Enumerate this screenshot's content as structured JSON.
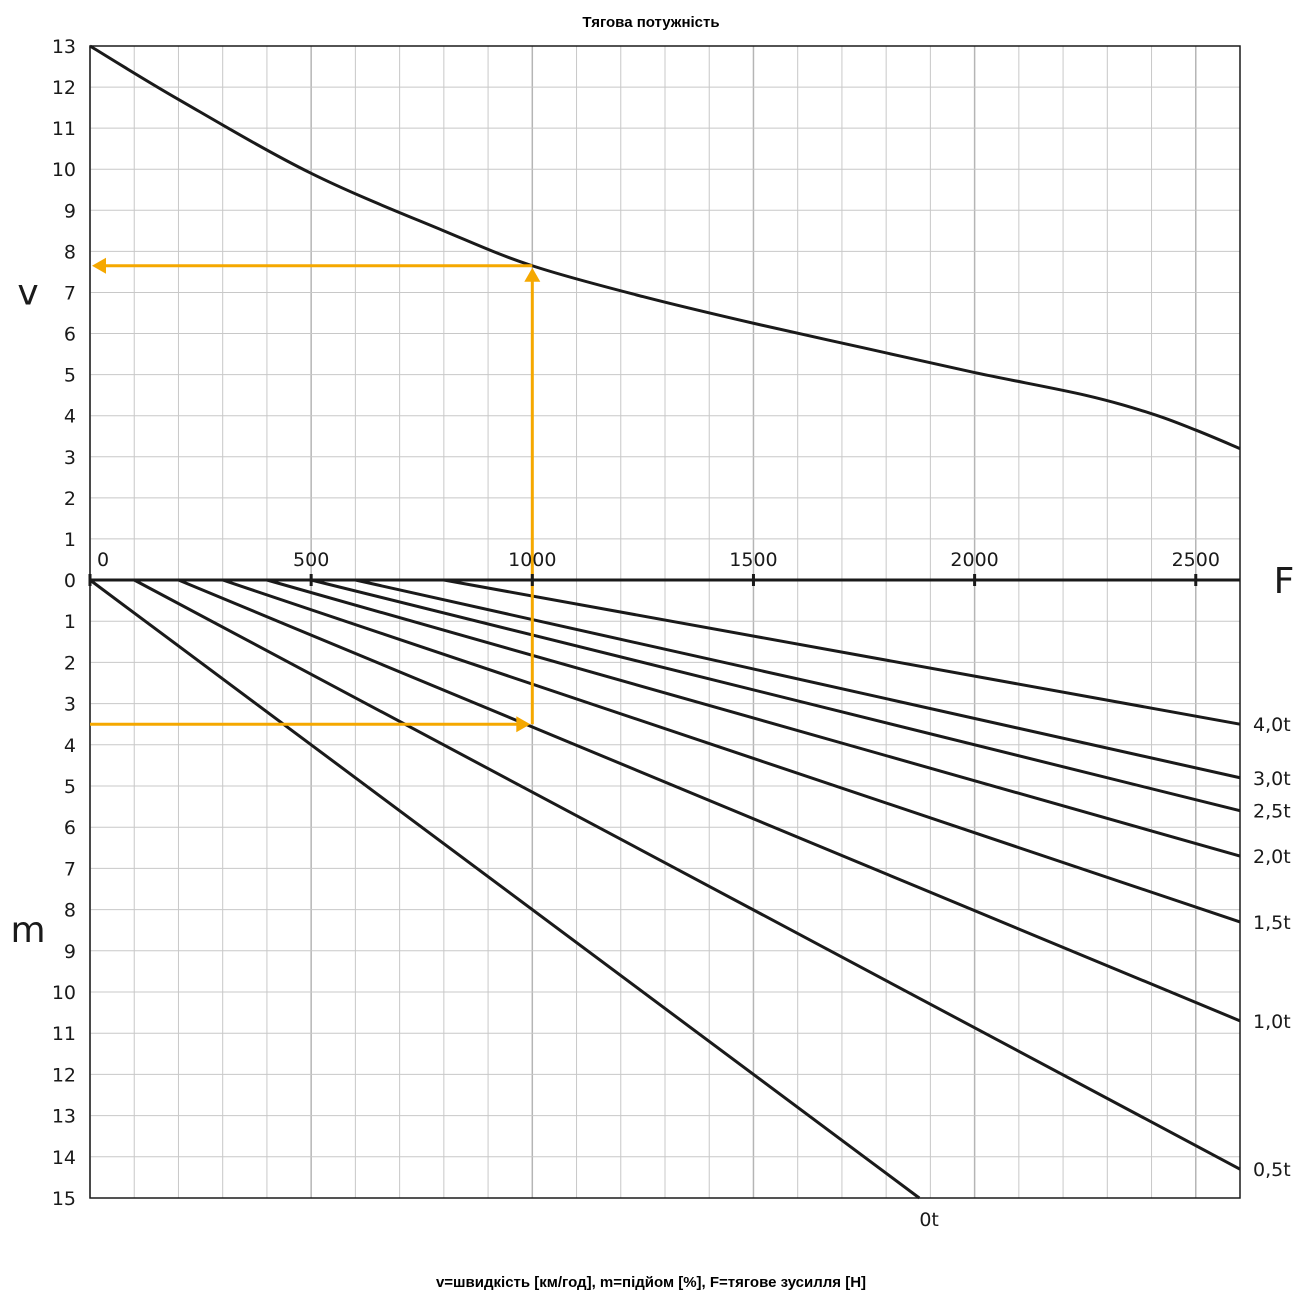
{
  "chart_data": {
    "type": "line",
    "title": "Тягова потужність",
    "caption": "v=швидкість [км/год], m=підйом [%], F=тягове зусилля [Н]",
    "x_axis": {
      "label": "F",
      "ticks": [
        "0",
        "500",
        "1000",
        "1500",
        "2000",
        "2500"
      ],
      "range": [
        0,
        2600
      ],
      "grid": true
    },
    "upper_axis": {
      "label": "v",
      "ticks": [
        "0",
        "1",
        "2",
        "3",
        "4",
        "5",
        "6",
        "7",
        "8",
        "9",
        "10",
        "11",
        "12",
        "13"
      ],
      "range": [
        0,
        13
      ]
    },
    "lower_axis": {
      "label": "m",
      "ticks": [
        "0",
        "1",
        "2",
        "3",
        "4",
        "5",
        "6",
        "7",
        "8",
        "9",
        "10",
        "11",
        "12",
        "13",
        "14",
        "15"
      ],
      "range": [
        0,
        15
      ]
    },
    "speed_curve": {
      "x": [
        0,
        200,
        500,
        800,
        1000,
        1250,
        1500,
        1750,
        2000,
        2250,
        2400,
        2500,
        2600
      ],
      "y": [
        13.0,
        11.7,
        9.9,
        8.5,
        7.65,
        6.9,
        6.25,
        5.65,
        5.05,
        4.5,
        4.05,
        3.65,
        3.2
      ]
    },
    "load_lines": [
      {
        "label": "0t",
        "x": [
          0,
          0
        ],
        "m": [
          0,
          0
        ],
        "end_x": 1875,
        "end_m": 15.0
      },
      {
        "label": "0,5t",
        "x": [
          100,
          0
        ],
        "end_x": 2600,
        "end_m": 14.3
      },
      {
        "label": "1,0t",
        "x": [
          200,
          0
        ],
        "end_x": 2600,
        "end_m": 10.7
      },
      {
        "label": "1,5t",
        "x": [
          300,
          0
        ],
        "end_x": 2600,
        "end_m": 8.3
      },
      {
        "label": "2,0t",
        "x": [
          400,
          0
        ],
        "end_x": 2600,
        "end_m": 6.7
      },
      {
        "label": "2,5t",
        "x": [
          500,
          0
        ],
        "end_x": 2600,
        "end_m": 5.6
      },
      {
        "label": "3,0t",
        "x": [
          600,
          0
        ],
        "end_x": 2600,
        "end_m": 4.8
      },
      {
        "label": "4,0t",
        "x": [
          800,
          0
        ],
        "end_x": 2600,
        "end_m": 3.5
      }
    ],
    "example": {
      "color": "#f5a800",
      "F": 1000,
      "m": 3.5,
      "v": 7.65
    },
    "colors": {
      "line": "#1a1a1a",
      "grid": "#c8c8c8",
      "highlight": "#f5a800"
    }
  }
}
